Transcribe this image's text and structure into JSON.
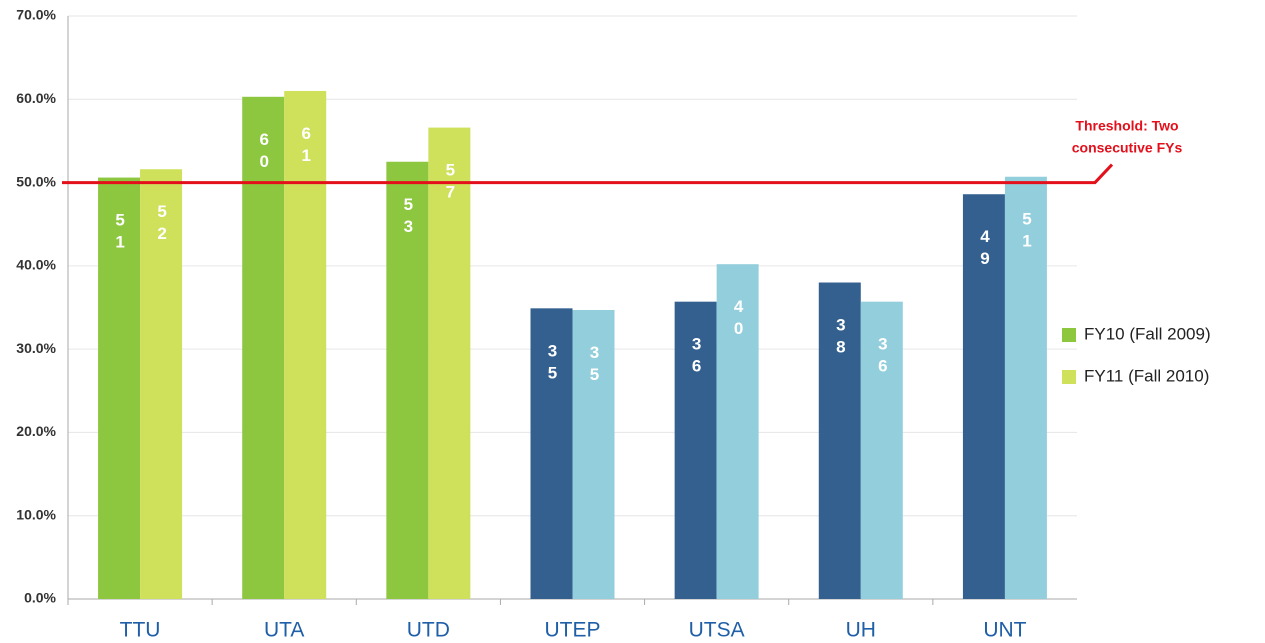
{
  "chart_data": {
    "type": "bar",
    "categories": [
      "TTU",
      "UTA",
      "UTD",
      "UTEP",
      "UTSA",
      "UH",
      "UNT"
    ],
    "series": [
      {
        "name": "FY10 (Fall 2009)",
        "color": "#8dc63f",
        "colors": [
          "#8dc63f",
          "#8dc63f",
          "#8dc63f",
          "#34608f",
          "#34608f",
          "#34608f",
          "#34608f"
        ],
        "values": [
          50.6,
          60.3,
          52.5,
          34.9,
          35.7,
          38.0,
          48.6
        ],
        "value_labels": [
          "51",
          "60",
          "53",
          "35",
          "36",
          "38",
          "49"
        ]
      },
      {
        "name": "FY11 (Fall 2010)",
        "color": "#cfe05a",
        "colors": [
          "#cfe05a",
          "#cfe05a",
          "#cfe05a",
          "#93cedc",
          "#93cedc",
          "#93cedc",
          "#93cedc"
        ],
        "values": [
          51.6,
          61.0,
          56.6,
          34.7,
          40.2,
          35.7,
          50.7
        ],
        "value_labels": [
          "52",
          "61",
          "57",
          "35",
          "40",
          "36",
          "51"
        ]
      }
    ],
    "ylim": [
      0,
      70
    ],
    "yticks": [
      {
        "value": 0,
        "label": "0.0%"
      },
      {
        "value": 10,
        "label": "10.0%"
      },
      {
        "value": 20,
        "label": "20.0%"
      },
      {
        "value": 30,
        "label": "30.0%"
      },
      {
        "value": 40,
        "label": "40.0%"
      },
      {
        "value": 50,
        "label": "50.0%"
      },
      {
        "value": 60,
        "label": "60.0%"
      },
      {
        "value": 70,
        "label": "70.0%"
      }
    ],
    "grid": true,
    "legend": "right",
    "threshold": {
      "value": 50,
      "color": "#e3101b",
      "label_lines": [
        "Threshold: Two",
        "consecutive FYs"
      ]
    }
  }
}
